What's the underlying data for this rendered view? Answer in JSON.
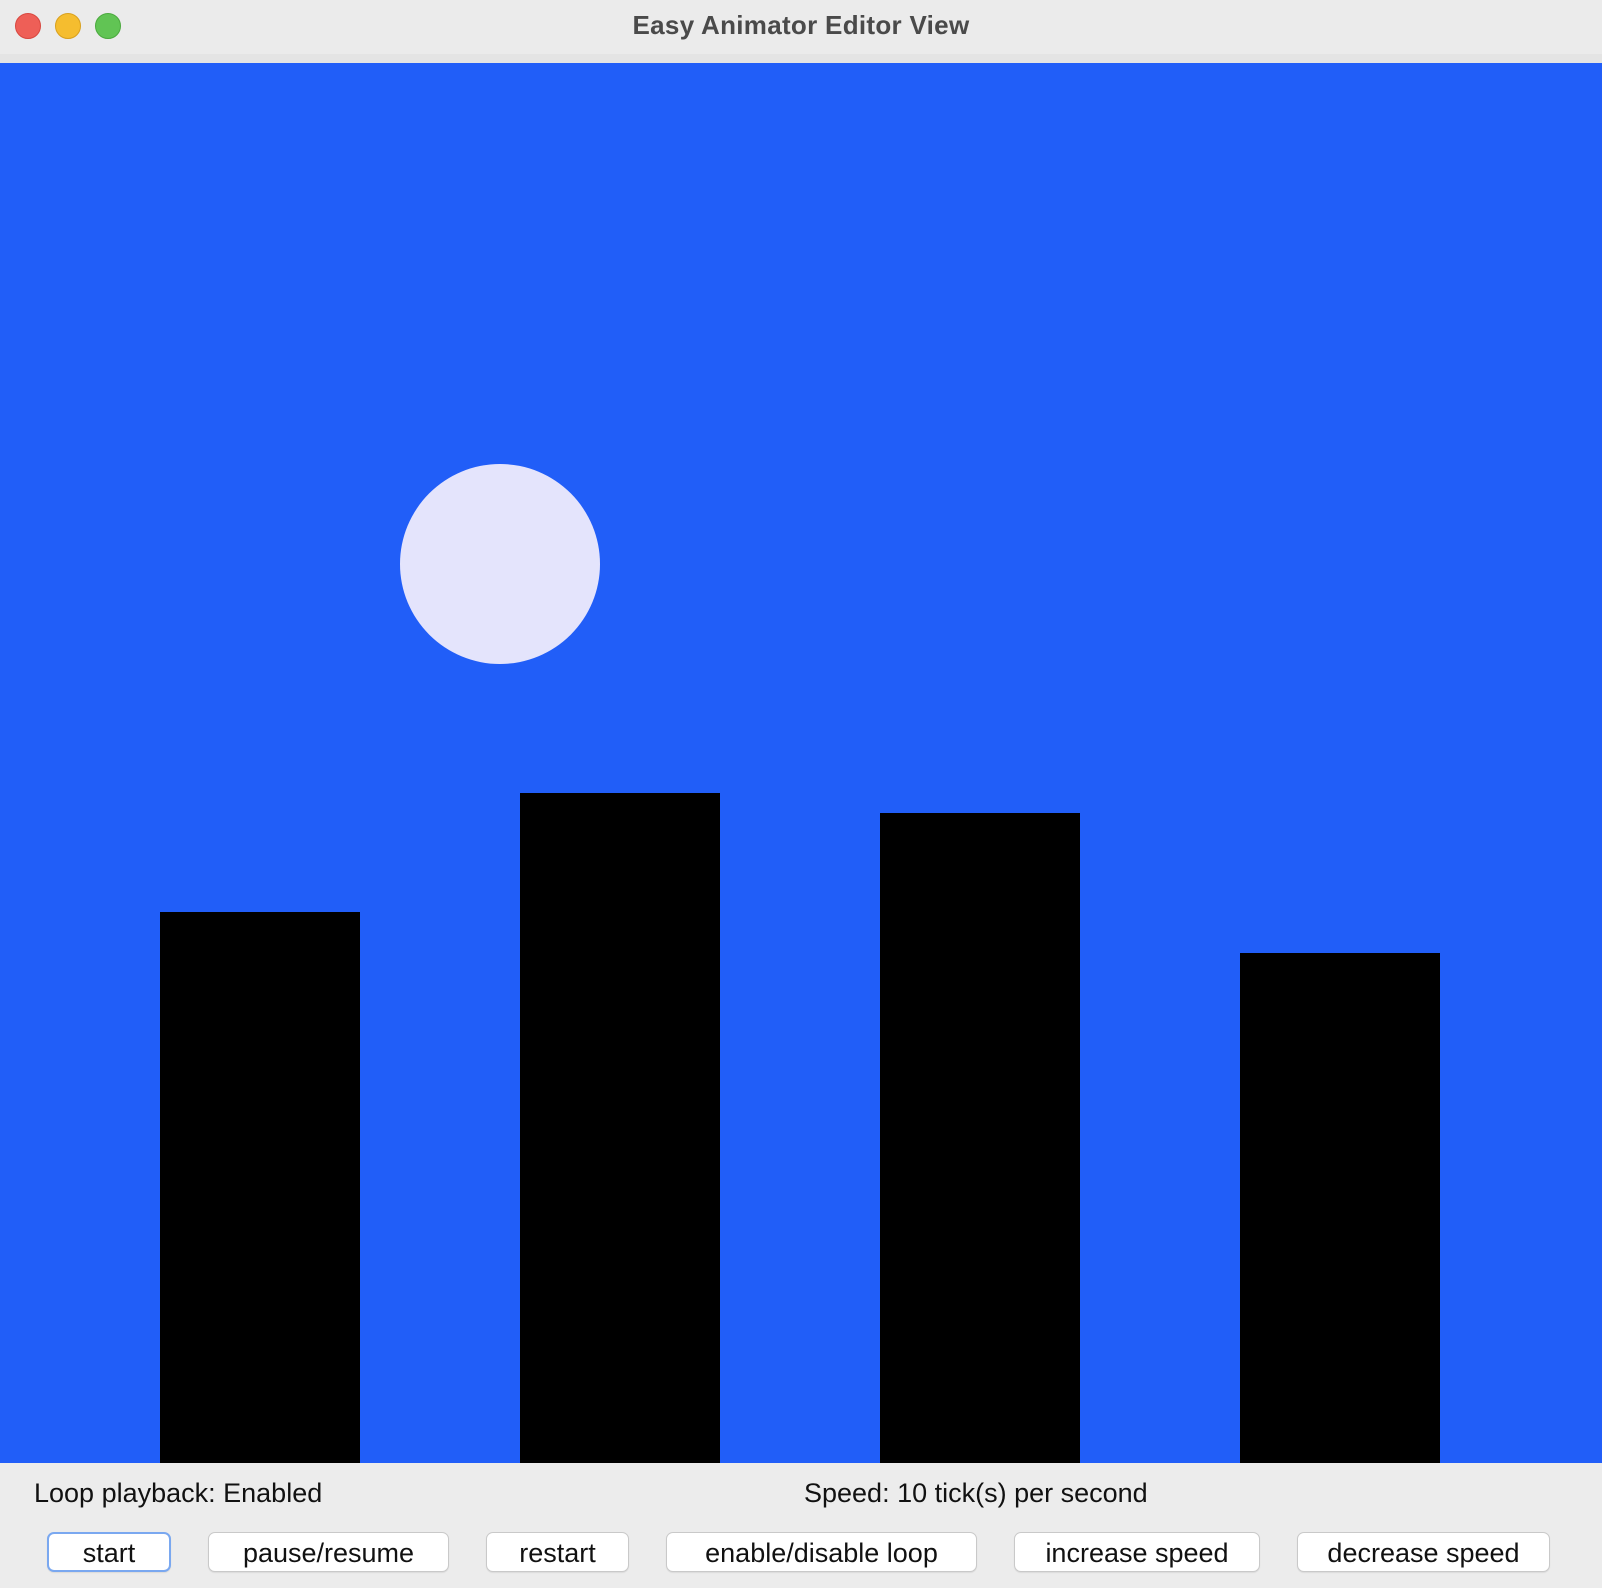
{
  "window": {
    "title": "Easy Animator Editor View"
  },
  "canvas": {
    "background_color": "#215ef8",
    "shapes": [
      {
        "name": "sun-circle",
        "type": "ellipse",
        "color": "#e4e4fc"
      },
      {
        "name": "building-1",
        "type": "rectangle",
        "color": "#000000"
      },
      {
        "name": "building-2",
        "type": "rectangle",
        "color": "#000000"
      },
      {
        "name": "building-3",
        "type": "rectangle",
        "color": "#000000"
      },
      {
        "name": "building-4",
        "type": "rectangle",
        "color": "#000000"
      }
    ]
  },
  "status": {
    "loop_text": "Loop playback: Enabled",
    "speed_text": "Speed: 10 tick(s) per second"
  },
  "buttons": {
    "start": "start",
    "pause_resume": "pause/resume",
    "restart": "restart",
    "toggle_loop": "enable/disable loop",
    "increase_speed": "increase speed",
    "decrease_speed": "decrease speed"
  }
}
